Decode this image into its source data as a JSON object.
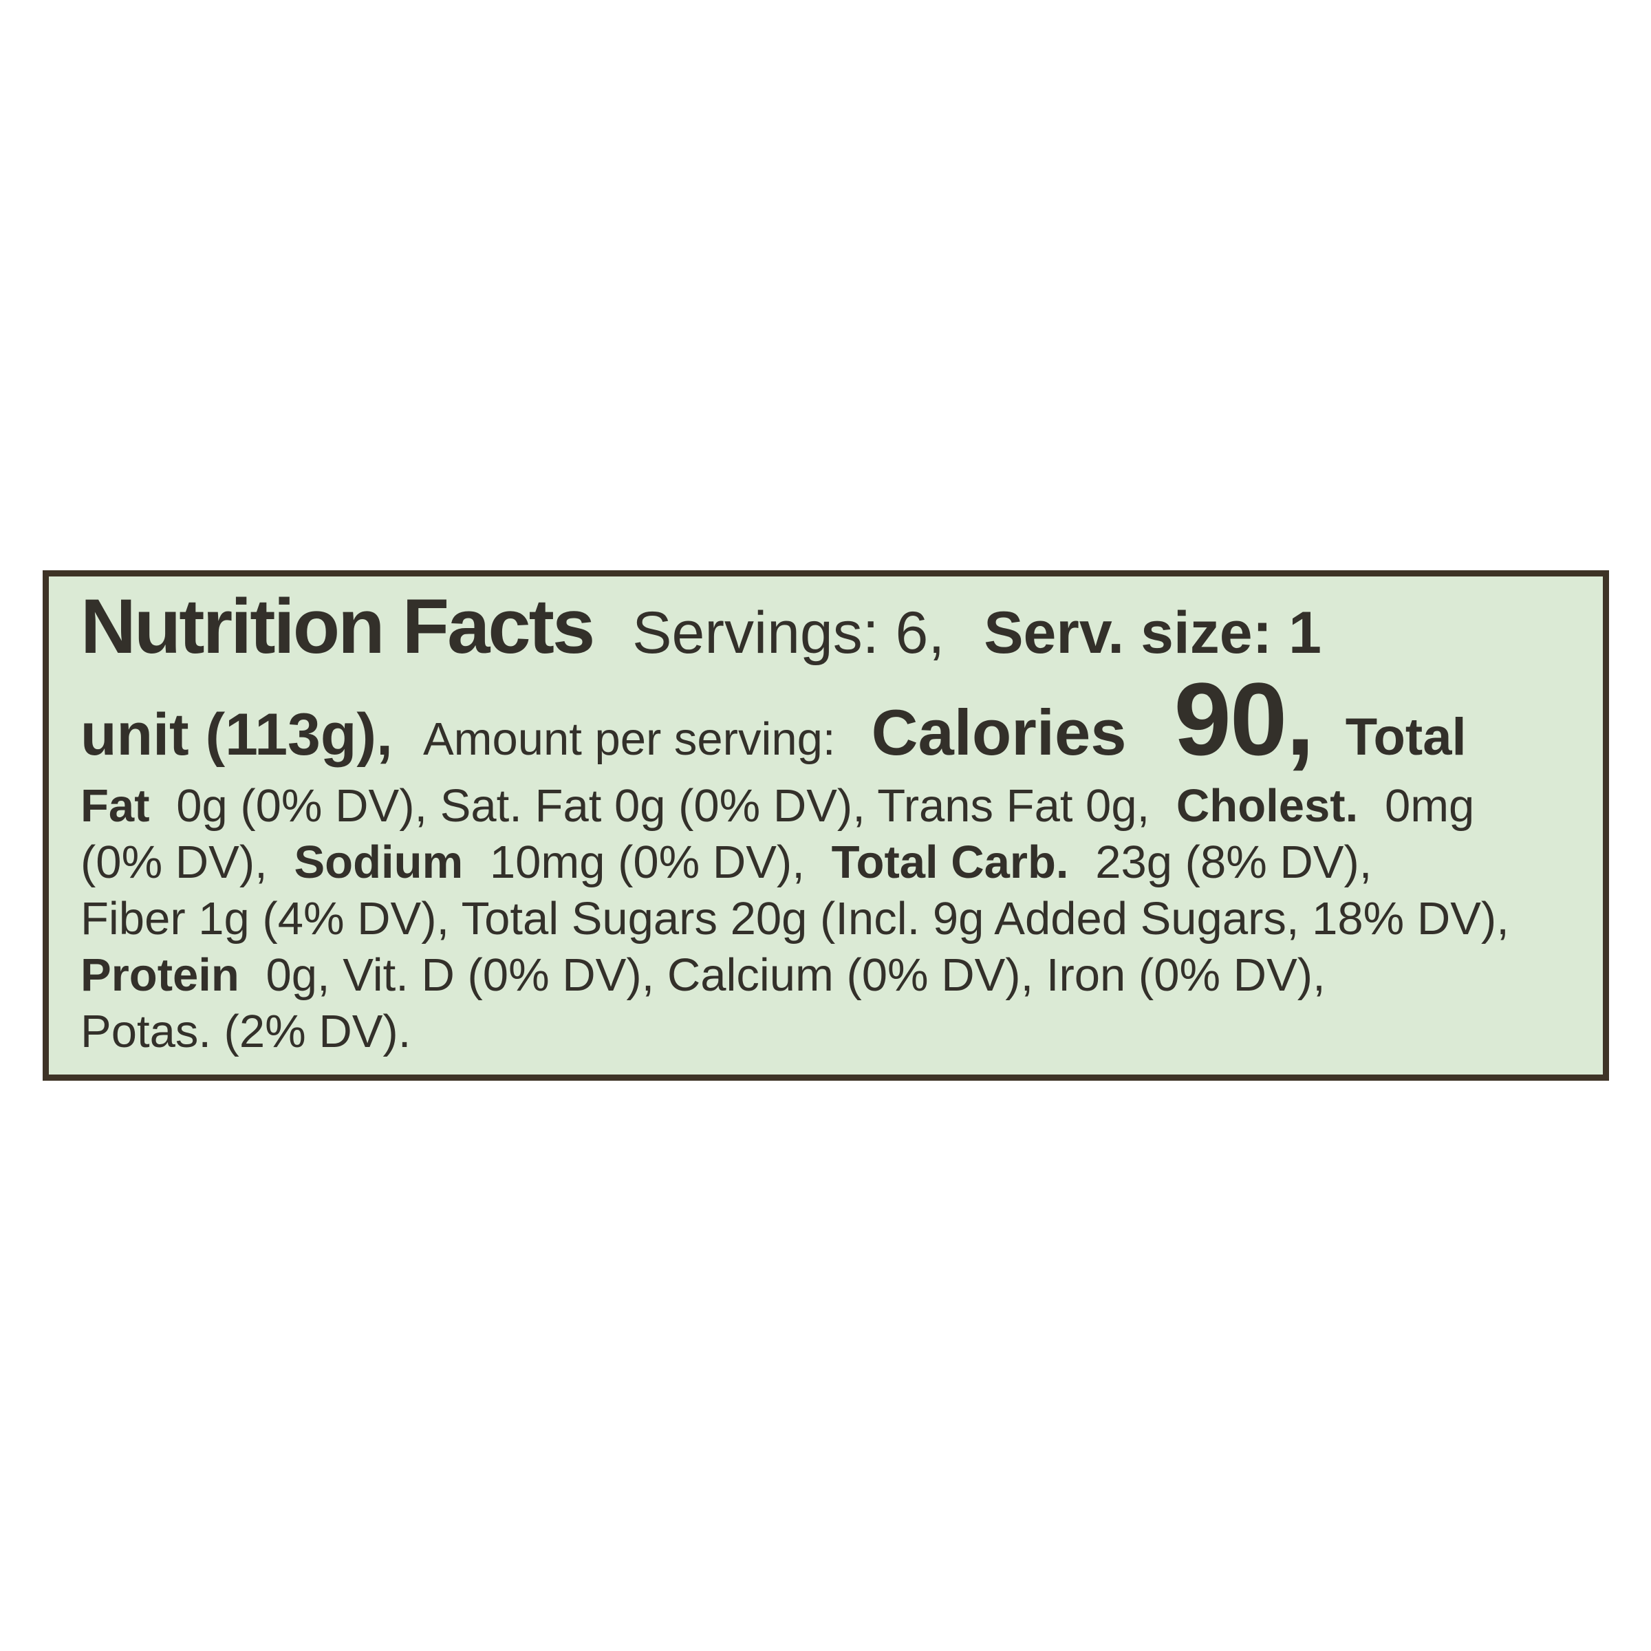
{
  "page": {
    "background_color": "#ffffff"
  },
  "label": {
    "background_color": "#dbead5",
    "border_color": "#3e3326",
    "text_color": "#33302a",
    "lines": [
      {
        "segments": [
          {
            "text": "Nutrition Facts"
          },
          {
            "text": "Servings: 6,"
          },
          {
            "text": "Serv. size: 1"
          }
        ]
      },
      {
        "segments": [
          {
            "text": "unit (113g),"
          },
          {
            "text": "Amount per serving:"
          },
          {
            "text": "Calories"
          },
          {
            "text": "90,"
          },
          {
            "text": "Total"
          }
        ]
      },
      {
        "segments": [
          {
            "text": "Fat"
          },
          {
            "text": "0g (0% DV), Sat. Fat 0g (0% DV), Trans Fat 0g,"
          },
          {
            "text": "Cholest."
          },
          {
            "text": "0mg"
          }
        ]
      },
      {
        "segments": [
          {
            "text": "(0% DV),"
          },
          {
            "text": "Sodium"
          },
          {
            "text": "10mg (0% DV),"
          },
          {
            "text": "Total Carb."
          },
          {
            "text": "23g (8% DV),"
          }
        ]
      },
      {
        "segments": [
          {
            "text": "Fiber 1g (4% DV), Total Sugars 20g (Incl. 9g Added Sugars, 18% DV),"
          }
        ]
      },
      {
        "segments": [
          {
            "text": "Protein"
          },
          {
            "text": "0g, Vit. D (0% DV), Calcium (0% DV), Iron (0% DV),"
          }
        ]
      },
      {
        "segments": [
          {
            "text": "Potas. (2% DV)."
          }
        ]
      }
    ],
    "facts": {
      "servings": "6",
      "serving_size": "1 unit (113g)",
      "calories": "90",
      "total_fat": "0g (0% DV)",
      "saturated_fat": "0g (0% DV)",
      "trans_fat": "0g",
      "cholesterol": "0mg (0% DV)",
      "sodium": "10mg (0% DV)",
      "total_carbohydrate": "23g (8% DV)",
      "dietary_fiber": "1g (4% DV)",
      "total_sugars": "20g",
      "added_sugars": "Incl. 9g Added Sugars, 18% DV",
      "protein": "0g",
      "vitamin_d": "0% DV",
      "calcium": "0% DV",
      "iron": "0% DV",
      "potassium": "2% DV"
    }
  }
}
